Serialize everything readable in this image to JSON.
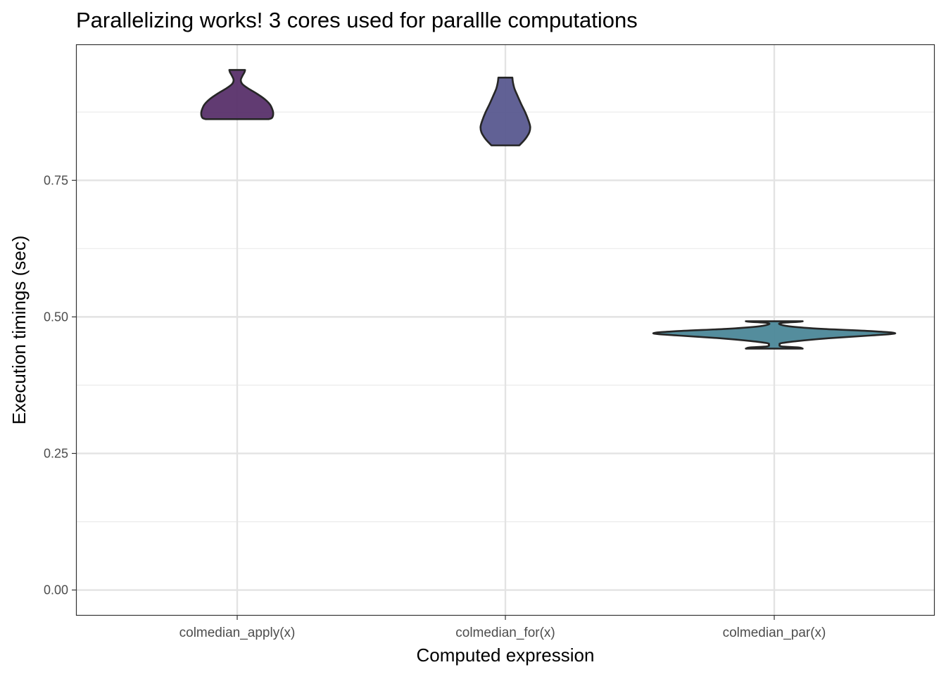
{
  "chart_data": {
    "type": "violin",
    "title": "Parallelizing works! 3 cores used for parallle computations",
    "xlabel": "Computed expression",
    "ylabel": "Execution timings (sec)",
    "ylim": [
      -0.047,
      0.999
    ],
    "yticks": [
      0.0,
      0.25,
      0.5,
      0.75
    ],
    "ytick_labels": [
      "0.00",
      "0.25",
      "0.50",
      "0.75"
    ],
    "yminor": [
      0.125,
      0.375,
      0.625,
      0.875
    ],
    "grid": true,
    "legend": "none",
    "categories": [
      "colmedian_apply(x)",
      "colmedian_for(x)",
      "colmedian_par(x)"
    ],
    "series": [
      {
        "name": "colmedian_apply(x)",
        "color": "#59306a",
        "min": 0.862,
        "max": 0.952,
        "density": [
          [
            0.862,
            0.26
          ],
          [
            0.864,
            0.285
          ],
          [
            0.868,
            0.295
          ],
          [
            0.874,
            0.297
          ],
          [
            0.88,
            0.29
          ],
          [
            0.889,
            0.27
          ],
          [
            0.899,
            0.225
          ],
          [
            0.909,
            0.16
          ],
          [
            0.919,
            0.085
          ],
          [
            0.927,
            0.04
          ],
          [
            0.934,
            0.03
          ],
          [
            0.942,
            0.045
          ],
          [
            0.948,
            0.06
          ],
          [
            0.952,
            0.065
          ]
        ]
      },
      {
        "name": "colmedian_for(x)",
        "color": "#58598f",
        "min": 0.814,
        "max": 0.938,
        "density": [
          [
            0.814,
            0.115
          ],
          [
            0.822,
            0.15
          ],
          [
            0.829,
            0.175
          ],
          [
            0.838,
            0.198
          ],
          [
            0.848,
            0.205
          ],
          [
            0.86,
            0.19
          ],
          [
            0.874,
            0.165
          ],
          [
            0.89,
            0.13
          ],
          [
            0.905,
            0.1
          ],
          [
            0.918,
            0.075
          ],
          [
            0.93,
            0.062
          ],
          [
            0.938,
            0.058
          ]
        ]
      },
      {
        "name": "colmedian_par(x)",
        "color": "#4b8798",
        "min": 0.442,
        "max": 0.492,
        "density": [
          [
            0.442,
            0.235
          ],
          [
            0.444,
            0.2
          ],
          [
            0.446,
            0.06
          ],
          [
            0.449,
            0.045
          ],
          [
            0.452,
            0.06
          ],
          [
            0.456,
            0.2
          ],
          [
            0.461,
            0.45
          ],
          [
            0.466,
            0.8
          ],
          [
            0.47,
            1.0
          ],
          [
            0.474,
            0.8
          ],
          [
            0.478,
            0.4
          ],
          [
            0.482,
            0.15
          ],
          [
            0.486,
            0.05
          ],
          [
            0.489,
            0.06
          ],
          [
            0.491,
            0.2
          ],
          [
            0.492,
            0.235
          ]
        ]
      }
    ]
  }
}
